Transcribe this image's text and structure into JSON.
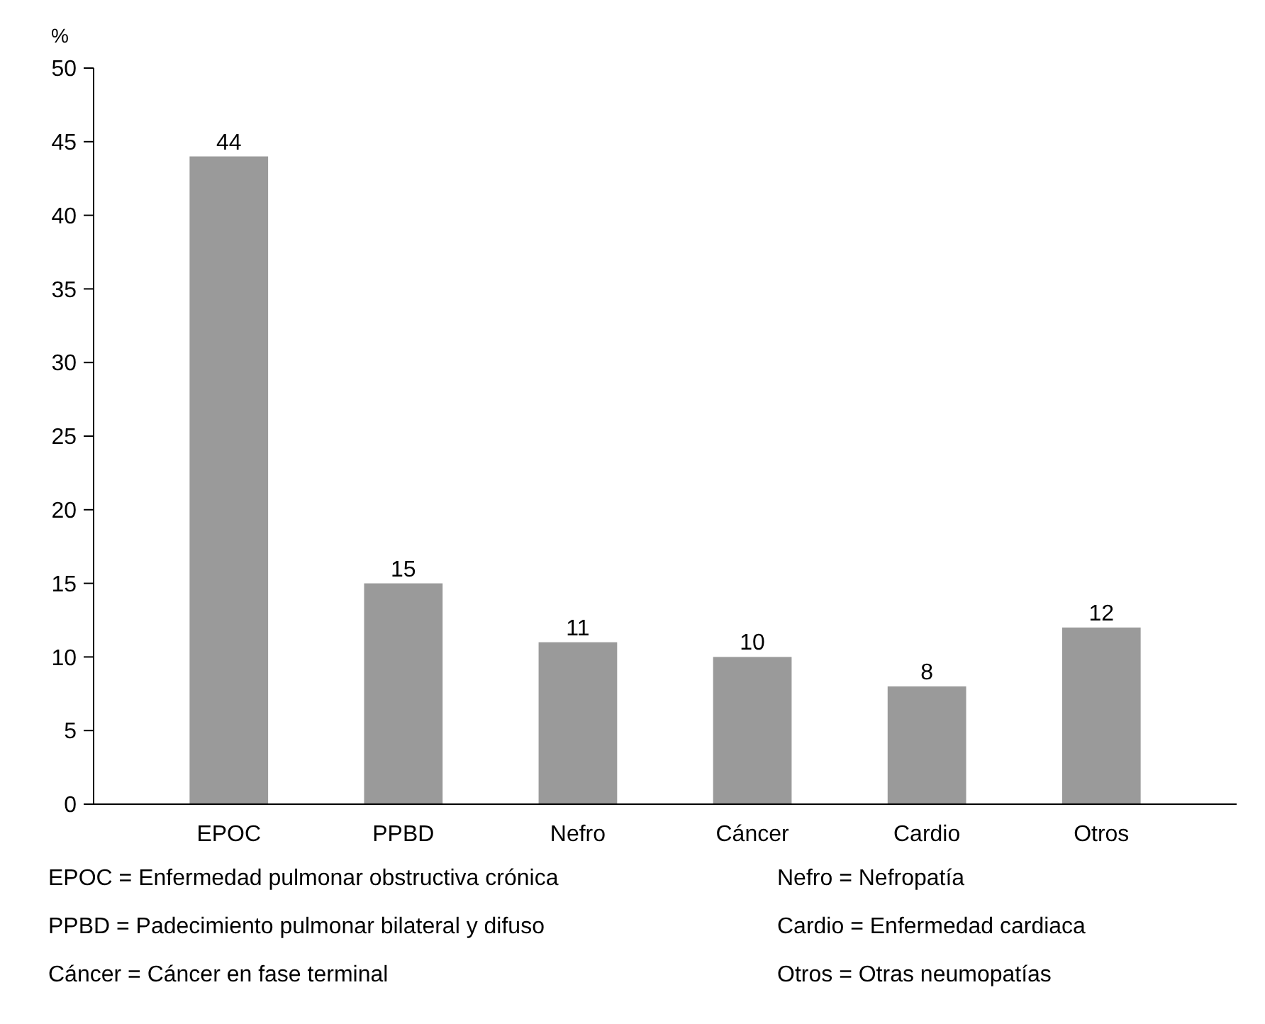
{
  "chart_data": {
    "type": "bar",
    "ylabel": "%",
    "categories": [
      "EPOC",
      "PPBD",
      "Nefro",
      "Cáncer",
      "Cardio",
      "Otros"
    ],
    "values": [
      44,
      15,
      11,
      10,
      8,
      12
    ],
    "color": "#9a9a9a",
    "ylim": [
      0,
      50
    ],
    "yticks": [
      0,
      5,
      10,
      15,
      20,
      25,
      30,
      35,
      40,
      45,
      50
    ],
    "grid": false,
    "data_labels": true,
    "annotations": [
      "EPOC = Enfermedad pulmonar obstructiva crónica",
      "Nefro = Nefropatía",
      "PPBD = Padecimiento pulmonar bilateral y difuso",
      "Cardio =  Enfermedad cardiaca",
      "Cáncer =  Cáncer en fase terminal",
      "Otros = Otras neumopatías"
    ]
  }
}
